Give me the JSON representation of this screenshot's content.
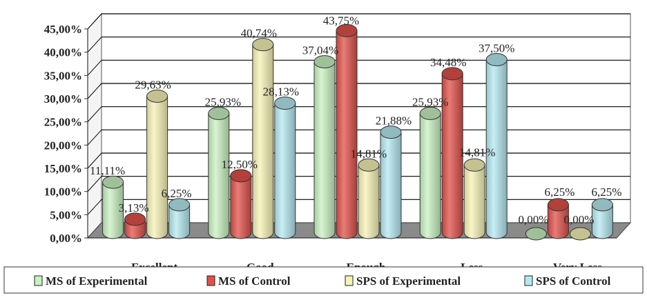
{
  "chart_data": {
    "type": "bar",
    "title": "",
    "xlabel": "",
    "ylabel": "",
    "ylim": [
      0,
      45
    ],
    "yticks": [
      "0,00%",
      "5,00%",
      "10,00%",
      "15,00%",
      "20,00%",
      "25,00%",
      "30,00%",
      "35,00%",
      "40,00%",
      "45,00%"
    ],
    "grid": true,
    "legend_position": "bottom",
    "categories": [
      "Excellent",
      "Good",
      "Enough",
      "Less",
      "Very Less"
    ],
    "series": [
      {
        "name": "MS of Experimental",
        "color": "#c8f0c0",
        "values": [
          11.11,
          25.93,
          37.04,
          25.93,
          0.0
        ],
        "labels": [
          "11,11%",
          "25,93%",
          "37,04%",
          "25,93%",
          "0,00%"
        ]
      },
      {
        "name": "MS of Control",
        "color": "#e0504a",
        "values": [
          3.13,
          12.5,
          43.75,
          34.48,
          6.25
        ],
        "labels": [
          "3,13%",
          "12,50%",
          "43,75%",
          "34,48%",
          "6,25%"
        ]
      },
      {
        "name": "SPS of Experimental",
        "color": "#f6f2b6",
        "values": [
          29.63,
          40.74,
          14.81,
          14.81,
          0.0
        ],
        "labels": [
          "29,63%",
          "40,74%",
          "14,81%",
          "14,81%",
          "0,00%"
        ]
      },
      {
        "name": "SPS of Control",
        "color": "#b4e8f0",
        "values": [
          6.25,
          28.13,
          21.88,
          37.5,
          6.25
        ],
        "labels": [
          "6,25%",
          "28,13%",
          "21,88%",
          "37,50%",
          "6,25%"
        ]
      }
    ]
  }
}
